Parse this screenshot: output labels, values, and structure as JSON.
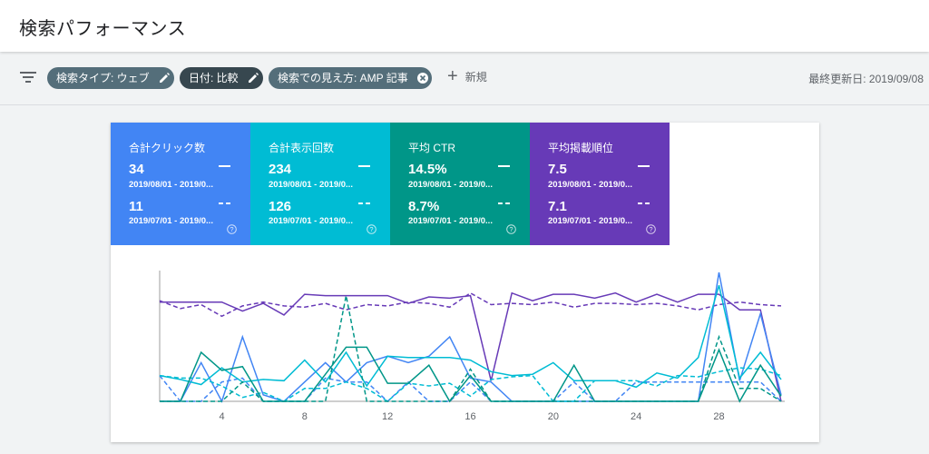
{
  "header": {
    "title": "検索パフォーマンス"
  },
  "filters": {
    "chips": [
      {
        "label": "検索タイプ: ウェブ",
        "action": "edit"
      },
      {
        "label": "日付: 比較",
        "action": "edit"
      },
      {
        "label": "検索での見え方: AMP 記事",
        "action": "remove"
      }
    ],
    "new_label": "新規",
    "last_updated": "最終更新日: 2019/09/08"
  },
  "metrics": [
    {
      "title": "合計クリック数",
      "value1": "34",
      "range1": "2019/08/01 - 2019/0...",
      "value2": "11",
      "range2": "2019/07/01 - 2019/0...",
      "color": "#4285f4"
    },
    {
      "title": "合計表示回数",
      "value1": "234",
      "range1": "2019/08/01 - 2019/0...",
      "value2": "126",
      "range2": "2019/07/01 - 2019/0...",
      "color": "#00bcd4"
    },
    {
      "title": "平均 CTR",
      "value1": "14.5%",
      "range1": "2019/08/01 - 2019/0...",
      "value2": "8.7%",
      "range2": "2019/07/01 - 2019/0...",
      "color": "#009688"
    },
    {
      "title": "平均掲載順位",
      "value1": "7.5",
      "range1": "2019/08/01 - 2019/0...",
      "value2": "7.1",
      "range2": "2019/07/01 - 2019/0...",
      "color": "#673ab7"
    }
  ],
  "chart_data": {
    "type": "line",
    "x": [
      1,
      2,
      3,
      4,
      5,
      6,
      7,
      8,
      9,
      10,
      11,
      12,
      13,
      14,
      15,
      16,
      17,
      18,
      19,
      20,
      21,
      22,
      23,
      24,
      25,
      26,
      27,
      28,
      29,
      30,
      31
    ],
    "xticks": [
      4,
      8,
      12,
      16,
      20,
      24,
      28
    ],
    "ylim": [
      0,
      1
    ],
    "grid": false,
    "series": [
      {
        "metric": "平均掲載順位",
        "style": "solid",
        "color": "#673ab7",
        "values": [
          0.77,
          0.77,
          0.77,
          0.77,
          0.7,
          0.76,
          0.67,
          0.83,
          0.82,
          0.82,
          0.82,
          0.82,
          0.76,
          0.81,
          0.8,
          0.82,
          0.16,
          0.84,
          0.78,
          0.83,
          0.83,
          0.8,
          0.84,
          0.77,
          0.83,
          0.77,
          0.83,
          0.83,
          0.71,
          0.71,
          0.0
        ]
      },
      {
        "metric": "平均掲載順位",
        "style": "dashed",
        "color": "#673ab7",
        "values": [
          0.78,
          0.72,
          0.75,
          0.66,
          0.74,
          0.77,
          0.74,
          0.73,
          0.76,
          0.71,
          0.75,
          0.74,
          0.77,
          0.76,
          0.73,
          0.84,
          0.75,
          0.76,
          0.75,
          0.77,
          0.73,
          0.76,
          0.76,
          0.75,
          0.76,
          0.74,
          0.71,
          0.75,
          0.77,
          0.75,
          0.74
        ]
      },
      {
        "metric": "合計クリック数",
        "style": "solid",
        "color": "#4285f4",
        "values": [
          0.0,
          0.0,
          0.3,
          0.0,
          0.5,
          0.05,
          0.0,
          0.15,
          0.3,
          0.15,
          0.3,
          0.35,
          0.3,
          0.35,
          0.5,
          0.18,
          0.15,
          0.0,
          0.0,
          0.0,
          0.0,
          0.0,
          0.0,
          0.0,
          0.0,
          0.0,
          0.0,
          1.0,
          0.16,
          0.68,
          0.05
        ]
      },
      {
        "metric": "合計クリック数",
        "style": "dashed",
        "color": "#4285f4",
        "values": [
          0.2,
          0.0,
          0.0,
          0.15,
          0.18,
          0.0,
          0.0,
          0.0,
          0.18,
          0.15,
          0.15,
          0.0,
          0.15,
          0.0,
          0.0,
          0.15,
          0.0,
          0.0,
          0.0,
          0.0,
          0.15,
          0.0,
          0.0,
          0.15,
          0.15,
          0.15,
          0.15,
          0.15,
          0.15,
          0.15,
          0.0
        ]
      },
      {
        "metric": "合計表示回数",
        "style": "solid",
        "color": "#00bcd4",
        "values": [
          0.2,
          0.17,
          0.13,
          0.26,
          0.15,
          0.17,
          0.16,
          0.32,
          0.15,
          0.38,
          0.12,
          0.35,
          0.34,
          0.34,
          0.34,
          0.32,
          0.23,
          0.2,
          0.21,
          0.3,
          0.16,
          0.16,
          0.16,
          0.11,
          0.22,
          0.18,
          0.34,
          0.9,
          0.18,
          0.38,
          0.17
        ]
      },
      {
        "metric": "合計表示回数",
        "style": "dashed",
        "color": "#00bcd4",
        "values": [
          0.2,
          0.18,
          0.18,
          0.12,
          0.03,
          0.07,
          0.0,
          0.1,
          0.1,
          0.15,
          0.1,
          0.0,
          0.14,
          0.12,
          0.14,
          0.04,
          0.17,
          0.19,
          0.2,
          0.0,
          0.0,
          0.16,
          0.16,
          0.16,
          0.12,
          0.2,
          0.19,
          0.23,
          0.26,
          0.25,
          0.2
        ]
      },
      {
        "metric": "平均 CTR",
        "style": "solid",
        "color": "#009688",
        "values": [
          0.0,
          0.0,
          0.38,
          0.24,
          0.27,
          0.0,
          0.0,
          0.0,
          0.21,
          0.42,
          0.42,
          0.14,
          0.14,
          0.28,
          0.0,
          0.2,
          0.0,
          0.0,
          0.0,
          0.0,
          0.28,
          0.0,
          0.0,
          0.0,
          0.0,
          0.0,
          0.0,
          0.4,
          0.0,
          0.28,
          0.04
        ]
      },
      {
        "metric": "平均 CTR",
        "style": "dashed",
        "color": "#009688",
        "values": [
          0.0,
          0.0,
          0.0,
          0.0,
          0.15,
          0.0,
          0.0,
          0.0,
          0.0,
          0.82,
          0.0,
          0.0,
          0.0,
          0.0,
          0.0,
          0.25,
          0.0,
          0.0,
          0.0,
          0.0,
          0.0,
          0.0,
          0.0,
          0.0,
          0.0,
          0.0,
          0.0,
          0.5,
          0.1,
          0.1,
          0.0
        ]
      }
    ]
  }
}
